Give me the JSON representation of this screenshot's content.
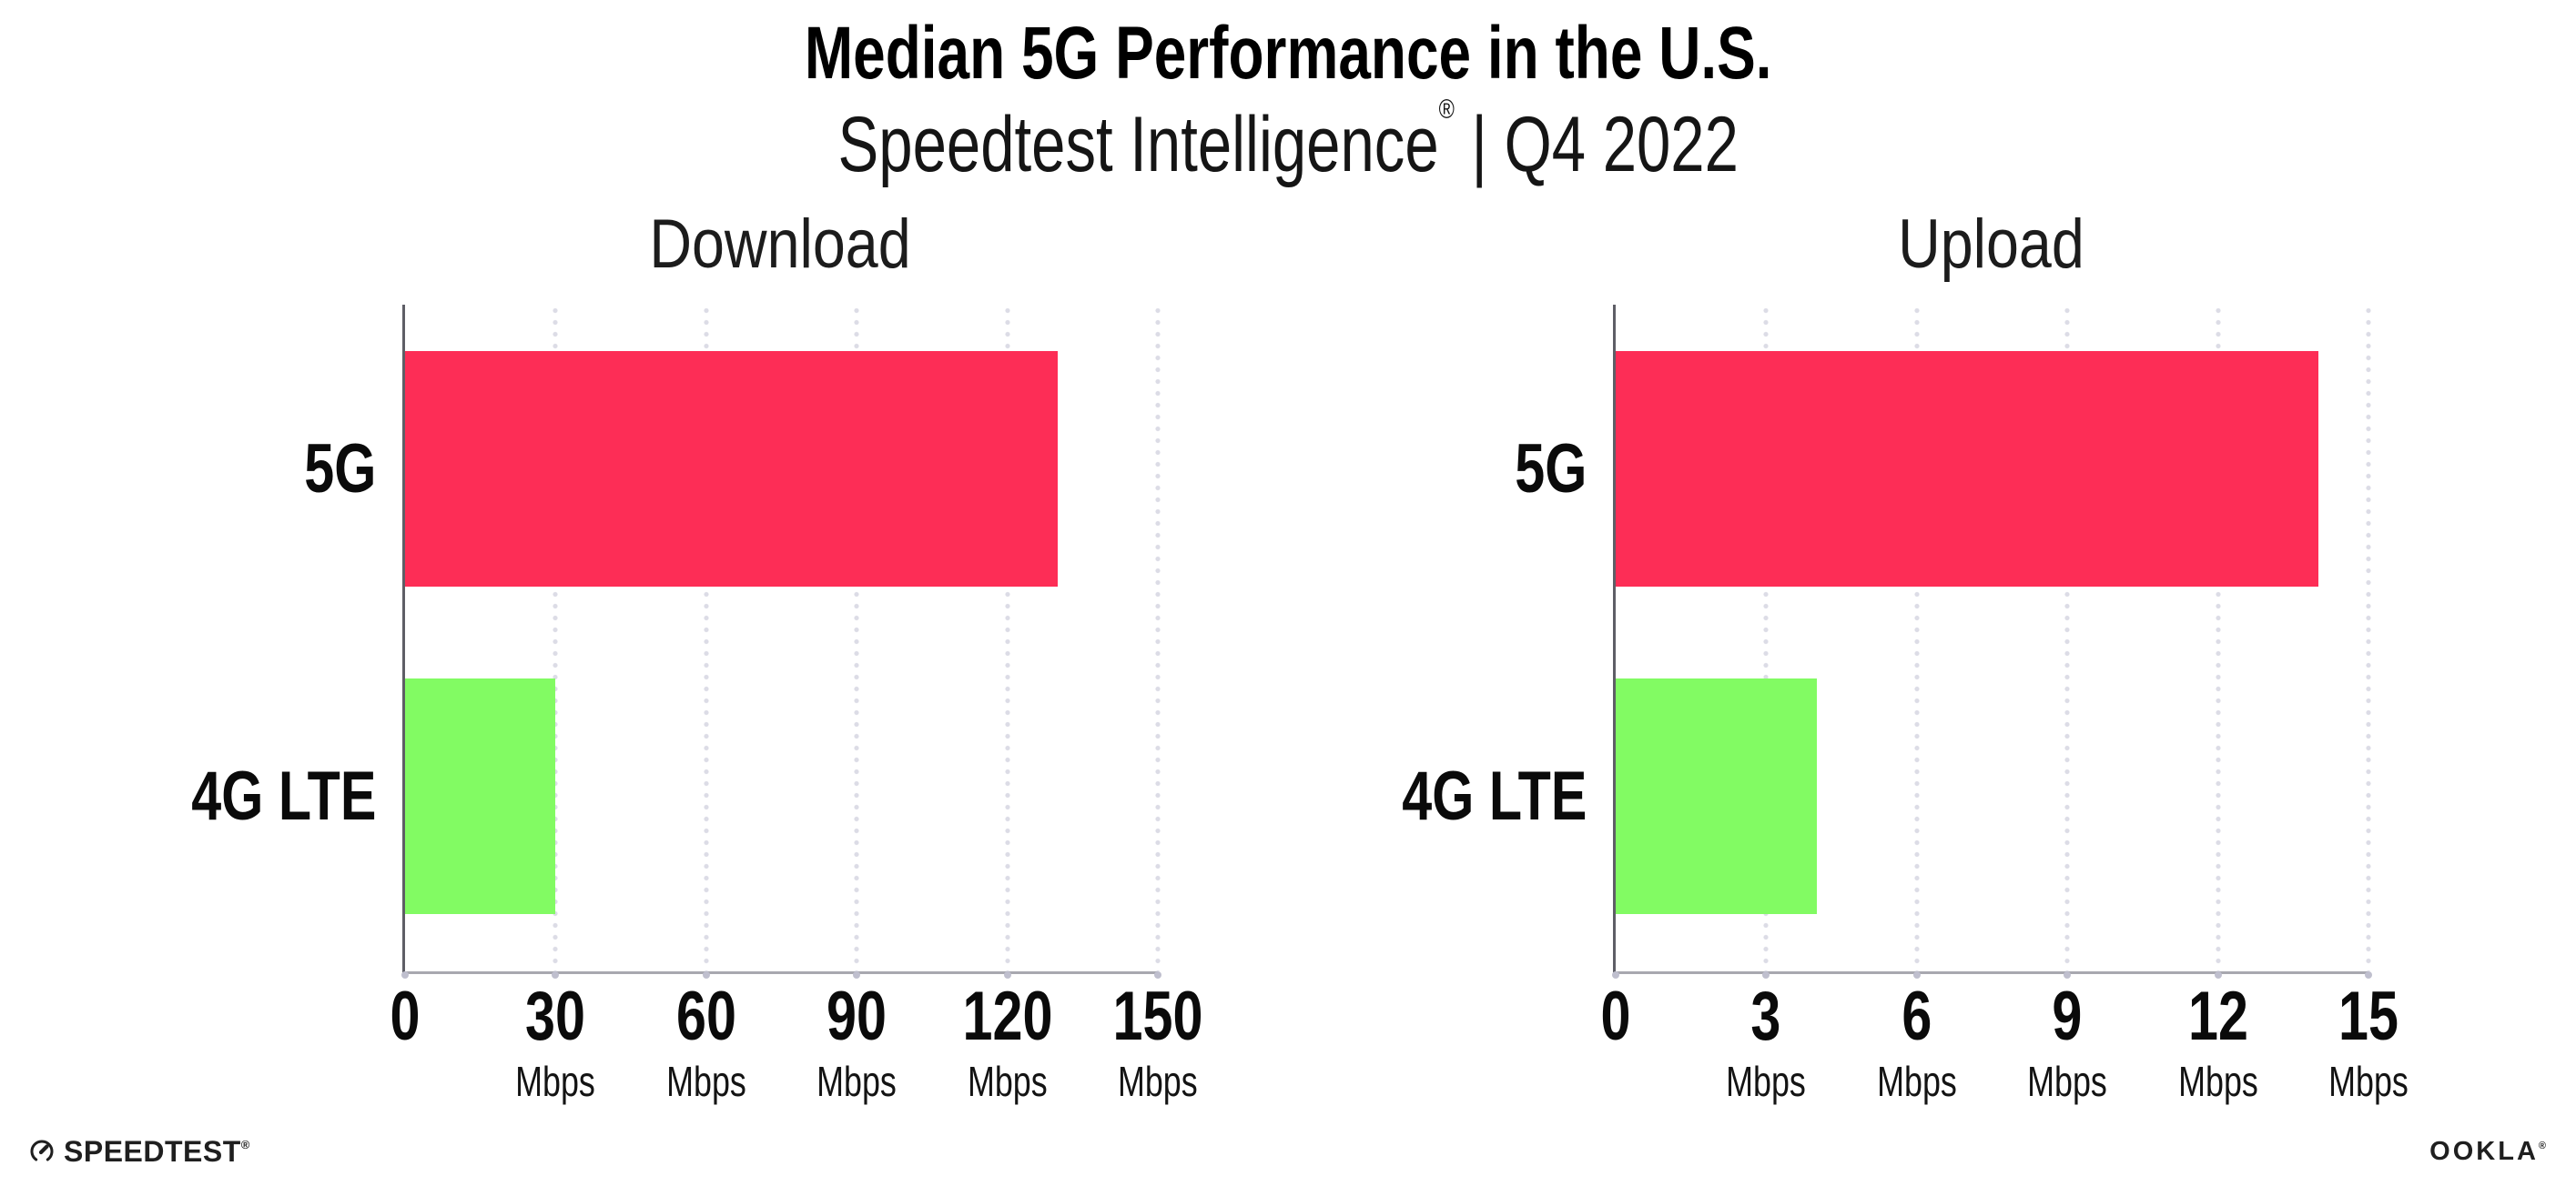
{
  "header": {
    "title": "Median 5G Performance in the U.S.",
    "subtitle_brand": "Speedtest Intelligence",
    "subtitle_reg": "®",
    "subtitle_rest": " | Q4 2022"
  },
  "chart_data": [
    {
      "type": "bar",
      "orientation": "horizontal",
      "title": "Download",
      "categories": [
        "5G",
        "4G LTE"
      ],
      "values": [
        130,
        30
      ],
      "unit": "Mbps",
      "xlim": [
        0,
        150
      ],
      "xticks": [
        0,
        30,
        60,
        90,
        120,
        150
      ],
      "series_colors": [
        "#fd2d56",
        "#82fb63"
      ],
      "grid": "dotted-vertical",
      "legend": "none"
    },
    {
      "type": "bar",
      "orientation": "horizontal",
      "title": "Upload",
      "categories": [
        "5G",
        "4G LTE"
      ],
      "values": [
        14,
        4
      ],
      "unit": "Mbps",
      "xlim": [
        0,
        15
      ],
      "xticks": [
        0,
        3,
        6,
        9,
        12,
        15
      ],
      "series_colors": [
        "#fd2d56",
        "#82fb63"
      ],
      "grid": "dotted-vertical",
      "legend": "none"
    }
  ],
  "colors": {
    "bar_5g": "#fd2d56",
    "bar_4g_lte": "#82fb63",
    "x_axis_line": "#a8a8af",
    "y_axis_line": "#5e5e66",
    "grid_dot": "#dcdce6",
    "axis_tick_dot": "#bfbfce",
    "text": "#0b0b0b",
    "background": "#ffffff"
  },
  "footer": {
    "speedtest_label": "SPEEDTEST",
    "speedtest_mark": "®",
    "ookla_label": "OOKLA",
    "ookla_mark": "®"
  }
}
